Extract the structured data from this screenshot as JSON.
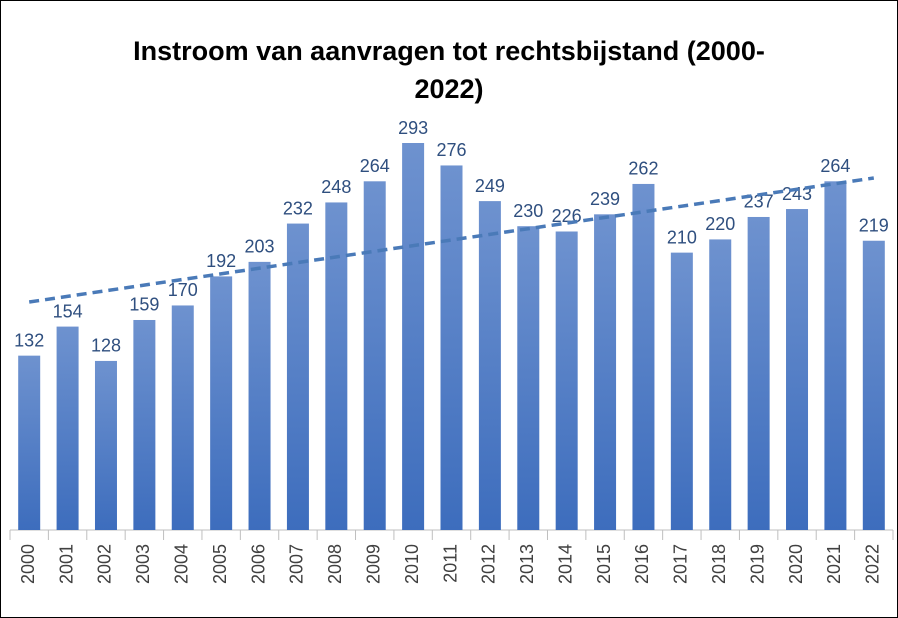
{
  "chart_data": {
    "type": "bar",
    "title": "Instroom van aanvragen tot rechtsbijstand (2000-2022)",
    "categories": [
      "2000",
      "2001",
      "2002",
      "2003",
      "2004",
      "2005",
      "2006",
      "2007",
      "2008",
      "2009",
      "2010",
      "2011",
      "2012",
      "2013",
      "2014",
      "2015",
      "2016",
      "2017",
      "2018",
      "2019",
      "2020",
      "2021",
      "2022"
    ],
    "values": [
      132,
      154,
      128,
      159,
      170,
      192,
      203,
      232,
      248,
      264,
      293,
      276,
      249,
      230,
      226,
      239,
      262,
      210,
      220,
      237,
      243,
      264,
      219
    ],
    "color": "#4a78c2",
    "trendline": true,
    "trendline_color": "#4a7ab8"
  }
}
